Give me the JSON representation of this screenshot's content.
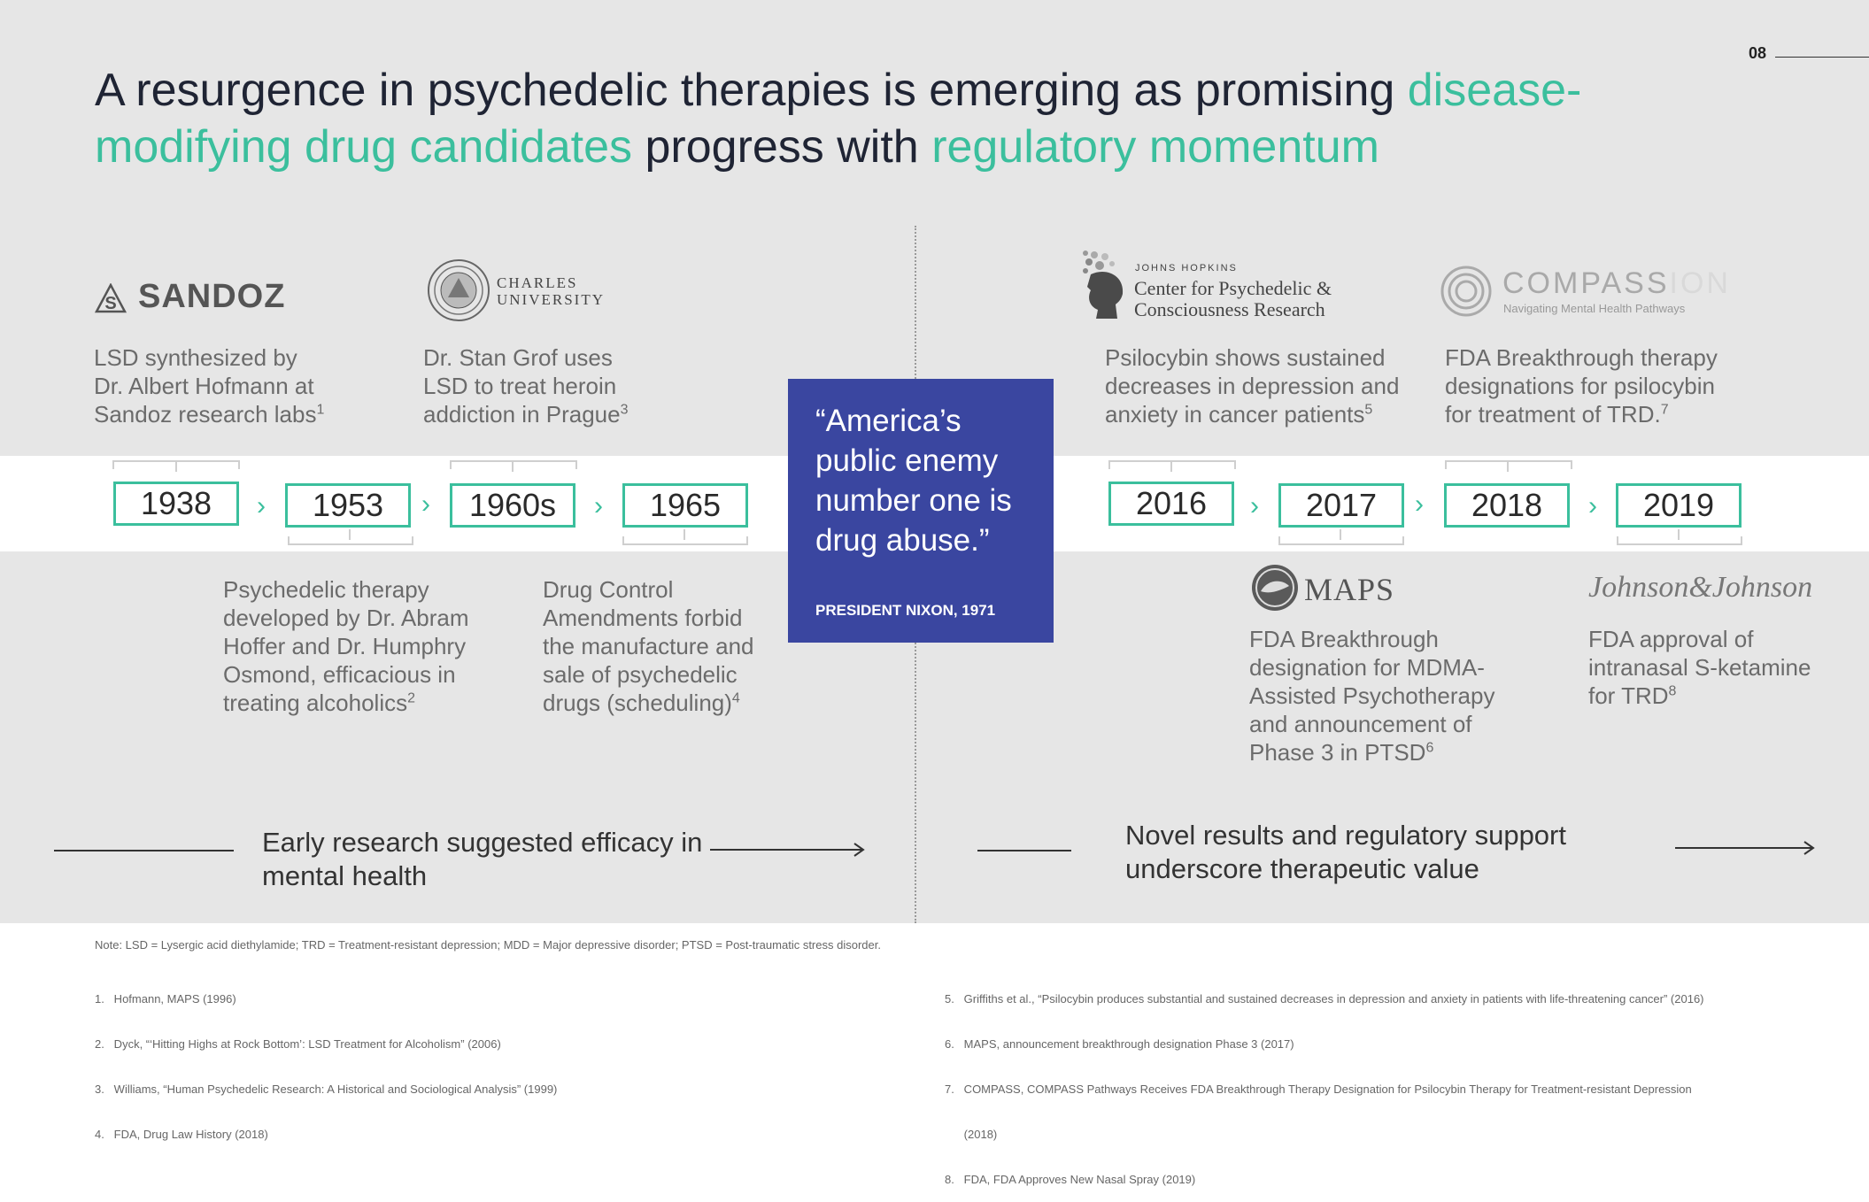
{
  "page_number": "08",
  "title": {
    "part1": "A resurgence in psychedelic therapies is emerging as promising ",
    "part2_highlight": "disease-modifying drug candidates",
    "part3": " progress with ",
    "part4_highlight": "regulatory momentum"
  },
  "colors": {
    "accent": "#3bbf9d",
    "quote_box": "#3a46a0",
    "title": "#1f2434"
  },
  "logos": {
    "sandoz": "SANDOZ",
    "charles_line1": "CHARLES",
    "charles_line2": "UNIVERSITY",
    "jh_small": "JOHNS HOPKINS",
    "jh_line1": "Center for Psychedelic &",
    "jh_line2": "Consciousness Research",
    "compass": "COMPASS",
    "compass_fade": "ION",
    "compass_tagline": "Navigating Mental Health Pathways",
    "maps": "MAPS",
    "jnj": "Johnson&Johnson"
  },
  "timeline": {
    "years": [
      "1938",
      "1953",
      "1960s",
      "1965",
      "2016",
      "2017",
      "2018",
      "2019"
    ],
    "chevron": "›"
  },
  "events": {
    "e1938": {
      "text": "LSD synthesized by Dr. Albert Hofmann at Sandoz research labs",
      "ref": "1"
    },
    "e1953": {
      "text": "Psychedelic therapy developed by Dr. Abram Hoffer and Dr. Humphry Osmond, efficacious in treating alcoholics",
      "ref": "2"
    },
    "e1960s": {
      "text": "Dr. Stan Grof uses LSD to treat heroin addiction in Prague",
      "ref": "3"
    },
    "e1965": {
      "text": "Drug Control Amendments forbid the manufacture and sale of psychedelic drugs (scheduling)",
      "ref": "4"
    },
    "e2016": {
      "text": "Psilocybin shows sustained decreases in depression and anxiety in cancer patients",
      "ref": "5"
    },
    "e2017": {
      "text": "FDA Breakthrough designation for MDMA-Assisted Psychotherapy and announcement of Phase 3 in PTSD",
      "ref": "6"
    },
    "e2018": {
      "text": "FDA Breakthrough therapy designations for psilocybin for treatment of TRD.",
      "ref": "7"
    },
    "e2019": {
      "text": "FDA approval of intranasal S-ketamine for TRD",
      "ref": "8"
    }
  },
  "quote": {
    "text": "“America’s public enemy number one is drug abuse.”",
    "attribution": "PRESIDENT NIXON, 1971"
  },
  "conclusions": {
    "left": "Early research suggested efficacy in mental health",
    "right": "Novel results and regulatory support underscore therapeutic value"
  },
  "note": "Note: LSD = Lysergic acid diethylamide; TRD = Treatment-resistant depression; MDD = Major depressive disorder; PTSD = Post-traumatic stress disorder.",
  "footnotes_left": [
    "1.   Hofmann, MAPS (1996)",
    "2.   Dyck, “‘Hitting Highs at Rock Bottom’: LSD Treatment for Alcoholism” (2006)",
    "3.   Williams, “Human Psychedelic Research: A Historical and Sociological Analysis” (1999)",
    "4.   FDA, Drug Law History (2018)"
  ],
  "footnotes_right": [
    "5.   Griffiths et al., “Psilocybin produces substantial and sustained decreases in depression and anxiety in patients with life-threatening cancer” (2016)",
    "6.   MAPS, announcement breakthrough designation Phase 3 (2017)",
    "7.   COMPASS, COMPASS Pathways Receives FDA Breakthrough Therapy Designation for Psilocybin Therapy for Treatment-resistant Depression",
    "      (2018)",
    "8.   FDA, FDA Approves New Nasal Spray (2019)"
  ]
}
